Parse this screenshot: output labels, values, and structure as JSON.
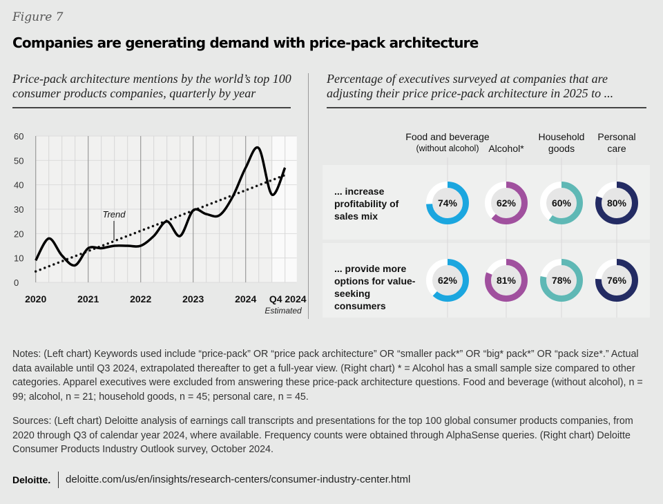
{
  "figure_label": "Figure 7",
  "title": "Companies are generating demand with price-pack architecture",
  "chart_data": [
    {
      "type": "line",
      "title": "Price-pack architecture mentions by the world’s top 100 consumer products companies, quarterly by year",
      "x_tick_labels": [
        "2020",
        "2021",
        "2022",
        "2023",
        "2024",
        "Q4 2024"
      ],
      "x_tick_note": "Estimated",
      "x": [
        "Q1 2020",
        "Q2 2020",
        "Q3 2020",
        "Q4 2020",
        "Q1 2021",
        "Q2 2021",
        "Q3 2021",
        "Q4 2021",
        "Q1 2022",
        "Q2 2022",
        "Q3 2022",
        "Q4 2022",
        "Q1 2023",
        "Q2 2023",
        "Q3 2023",
        "Q4 2023",
        "Q1 2024",
        "Q2 2024",
        "Q3 2024",
        "Q4 2024"
      ],
      "y_ticks": [
        0,
        10,
        20,
        30,
        40,
        50,
        60
      ],
      "ylim": [
        0,
        60
      ],
      "grid": true,
      "shaded_region": "Q4 2024 (estimated)",
      "series": [
        {
          "values": [
            9,
            18,
            11,
            7,
            14,
            14,
            15,
            15,
            15,
            19,
            25,
            19,
            29.5,
            28,
            27.5,
            35,
            47,
            55,
            36,
            47
          ],
          "style": "solid"
        },
        {
          "name": "Trend",
          "style": "dotted",
          "values_start_end": [
            4.5,
            44
          ]
        }
      ],
      "annotation": "Trend"
    },
    {
      "type": "donut",
      "title": "Percentage of executives surveyed at companies that are adjusting their price price-pack architecture in 2025 to ...",
      "categories": [
        {
          "line1": "Food and beverage",
          "line2": "(without alcohol)",
          "color": "#1ba6df"
        },
        {
          "line1": "Alcohol*",
          "line2": "",
          "color": "#a0509e"
        },
        {
          "line1": "Household",
          "line2": "goods",
          "color": "#5fb8b5"
        },
        {
          "line1": "Personal",
          "line2": "care",
          "color": "#232b63"
        }
      ],
      "rows": [
        {
          "label": "... increase profitability of sales mix",
          "values": [
            74,
            62,
            60,
            80
          ]
        },
        {
          "label": "... provide more options for value-seeking consumers",
          "values": [
            62,
            81,
            78,
            76
          ]
        }
      ]
    }
  ],
  "notes": "Notes: (Left chart) Keywords used include “price-pack” OR “price pack architecture” OR “smaller pack*” OR “big* pack*” OR “pack size*.” Actual data available until Q3 2024, extrapolated thereafter to get a full-year view. (Right chart) * = Alcohol has a small sample size compared to other categories. Apparel executives were excluded from answering these price-pack architecture questions. Food and beverage (without alcohol), n = 99; alcohol, n = 21; household goods, n = 45; personal care, n = 45.",
  "sources": "Sources: (Left chart) Deloitte analysis of earnings call transcripts and presentations for the top 100 global consumer products companies, from 2020 through Q3 of calendar year 2024, where available. Frequency counts were obtained through AlphaSense queries. (Right chart) Deloitte Consumer Products Industry Outlook survey, October 2024.",
  "footer": {
    "logo": "Deloitte.",
    "url": "deloitte.com/us/en/insights/research-centers/consumer-industry-center.html"
  }
}
